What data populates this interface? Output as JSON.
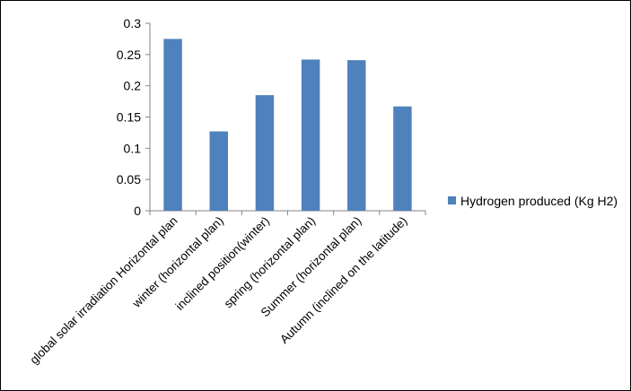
{
  "chart_data": {
    "type": "bar",
    "categories": [
      "global solar irradiation Horizontal plan",
      "winter (horizontal plan)",
      "inclined position(winter)",
      "spring (horizontal plan)",
      "Summer (horizontal plan)",
      "Autumn (inclined on the latitude)"
    ],
    "series": [
      {
        "name": "Hydrogen produced (Kg H2)",
        "values": [
          0.275,
          0.127,
          0.185,
          0.242,
          0.241,
          0.167
        ],
        "color": "#4F81BD"
      }
    ],
    "y_ticks": [
      "0",
      "0.05",
      "0.1",
      "0.15",
      "0.2",
      "0.25",
      "0.3"
    ],
    "ylim": [
      0,
      0.3
    ],
    "title": "",
    "xlabel": "",
    "ylabel": "",
    "grid": false,
    "legend_position": "right"
  }
}
